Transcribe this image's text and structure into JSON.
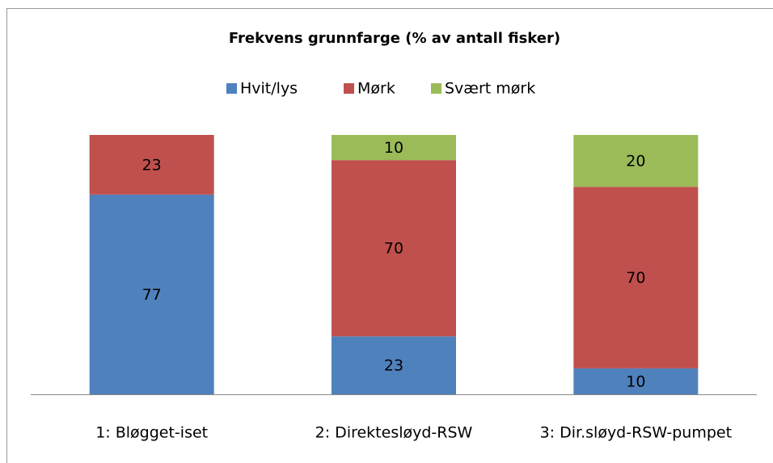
{
  "chart_data": {
    "type": "bar",
    "stacking": "percent",
    "title": "Frekvens grunnfarge (% av antall fisker)",
    "categories": [
      "1: Bløgget-iset",
      "2: Direktesløyd-RSW",
      "3: Dir.sløyd-RSW-pumpet"
    ],
    "series": [
      {
        "name": "Hvit/lys",
        "color": "#4f81bd",
        "values": [
          77,
          23,
          10
        ]
      },
      {
        "name": "Mørk",
        "color": "#c0504d",
        "values": [
          23,
          70,
          70
        ]
      },
      {
        "name": "Svært mørk",
        "color": "#9bbb59",
        "values": [
          null,
          10,
          20
        ]
      }
    ],
    "legend": "top"
  }
}
